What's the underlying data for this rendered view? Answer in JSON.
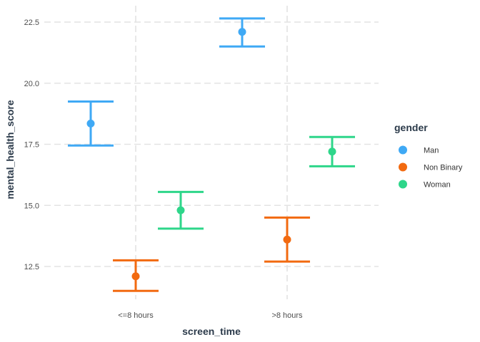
{
  "chart_data": {
    "type": "errorbar",
    "xlabel": "screen_time",
    "ylabel": "mental_health_score",
    "categories": [
      "<=8 hours",
      ">8 hours"
    ],
    "ylim": [
      11.0,
      23.2
    ],
    "yticks": [
      12.5,
      15.0,
      17.5,
      20.0,
      22.5
    ],
    "ytick_labels": [
      "12.5",
      "15.0",
      "17.5",
      "20.0",
      "22.5"
    ],
    "grid": true,
    "legend": {
      "title": "gender",
      "position": "right"
    },
    "series": [
      {
        "name": "Man",
        "color": "#3fa9f5",
        "points": [
          {
            "category": "<=8 hours",
            "mean": 18.35,
            "lower": 17.45,
            "upper": 19.25
          },
          {
            "category": ">8 hours",
            "mean": 22.1,
            "lower": 21.5,
            "upper": 22.65
          }
        ]
      },
      {
        "name": "Non Binary",
        "color": "#f26a10",
        "points": [
          {
            "category": "<=8 hours",
            "mean": 12.1,
            "lower": 11.5,
            "upper": 12.75
          },
          {
            "category": ">8 hours",
            "mean": 13.6,
            "lower": 12.7,
            "upper": 14.5
          }
        ]
      },
      {
        "name": "Woman",
        "color": "#2ed68a",
        "points": [
          {
            "category": "<=8 hours",
            "mean": 14.8,
            "lower": 14.05,
            "upper": 15.55
          },
          {
            "category": ">8 hours",
            "mean": 17.2,
            "lower": 16.6,
            "upper": 17.8
          }
        ]
      }
    ]
  }
}
